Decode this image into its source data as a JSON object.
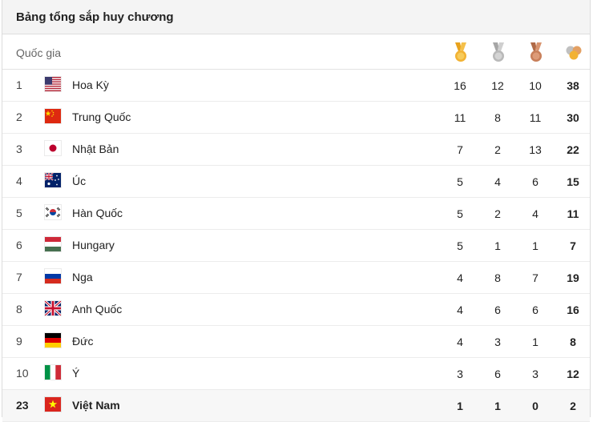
{
  "widget": {
    "title": "Bảng tổng sắp huy chương"
  },
  "columns": {
    "country_label": "Quốc gia",
    "gold_icon": "gold-medal-icon",
    "silver_icon": "silver-medal-icon",
    "bronze_icon": "bronze-medal-icon",
    "total_icon": "total-medals-icon"
  },
  "colors": {
    "gold": "#f2b233",
    "silver": "#b9b9b9",
    "bronze": "#c87f5a",
    "highlight_row": "#f7f7f7"
  },
  "rows": [
    {
      "rank": "1",
      "country": "Hoa Kỳ",
      "flag": "usa-flag-icon",
      "gold": "16",
      "silver": "12",
      "bronze": "10",
      "total": "38"
    },
    {
      "rank": "2",
      "country": "Trung Quốc",
      "flag": "china-flag-icon",
      "gold": "11",
      "silver": "8",
      "bronze": "11",
      "total": "30"
    },
    {
      "rank": "3",
      "country": "Nhật Bản",
      "flag": "japan-flag-icon",
      "gold": "7",
      "silver": "2",
      "bronze": "13",
      "total": "22"
    },
    {
      "rank": "4",
      "country": "Úc",
      "flag": "australia-flag-icon",
      "gold": "5",
      "silver": "4",
      "bronze": "6",
      "total": "15"
    },
    {
      "rank": "5",
      "country": "Hàn Quốc",
      "flag": "south-korea-flag-icon",
      "gold": "5",
      "silver": "2",
      "bronze": "4",
      "total": "11"
    },
    {
      "rank": "6",
      "country": "Hungary",
      "flag": "hungary-flag-icon",
      "gold": "5",
      "silver": "1",
      "bronze": "1",
      "total": "7"
    },
    {
      "rank": "7",
      "country": "Nga",
      "flag": "russia-flag-icon",
      "gold": "4",
      "silver": "8",
      "bronze": "7",
      "total": "19"
    },
    {
      "rank": "8",
      "country": "Anh Quốc",
      "flag": "uk-flag-icon",
      "gold": "4",
      "silver": "6",
      "bronze": "6",
      "total": "16"
    },
    {
      "rank": "9",
      "country": "Đức",
      "flag": "germany-flag-icon",
      "gold": "4",
      "silver": "3",
      "bronze": "1",
      "total": "8"
    },
    {
      "rank": "10",
      "country": "Ý",
      "flag": "italy-flag-icon",
      "gold": "3",
      "silver": "6",
      "bronze": "3",
      "total": "12"
    },
    {
      "rank": "23",
      "country": "Việt Nam",
      "flag": "vietnam-flag-icon",
      "gold": "1",
      "silver": "1",
      "bronze": "0",
      "total": "2"
    }
  ]
}
